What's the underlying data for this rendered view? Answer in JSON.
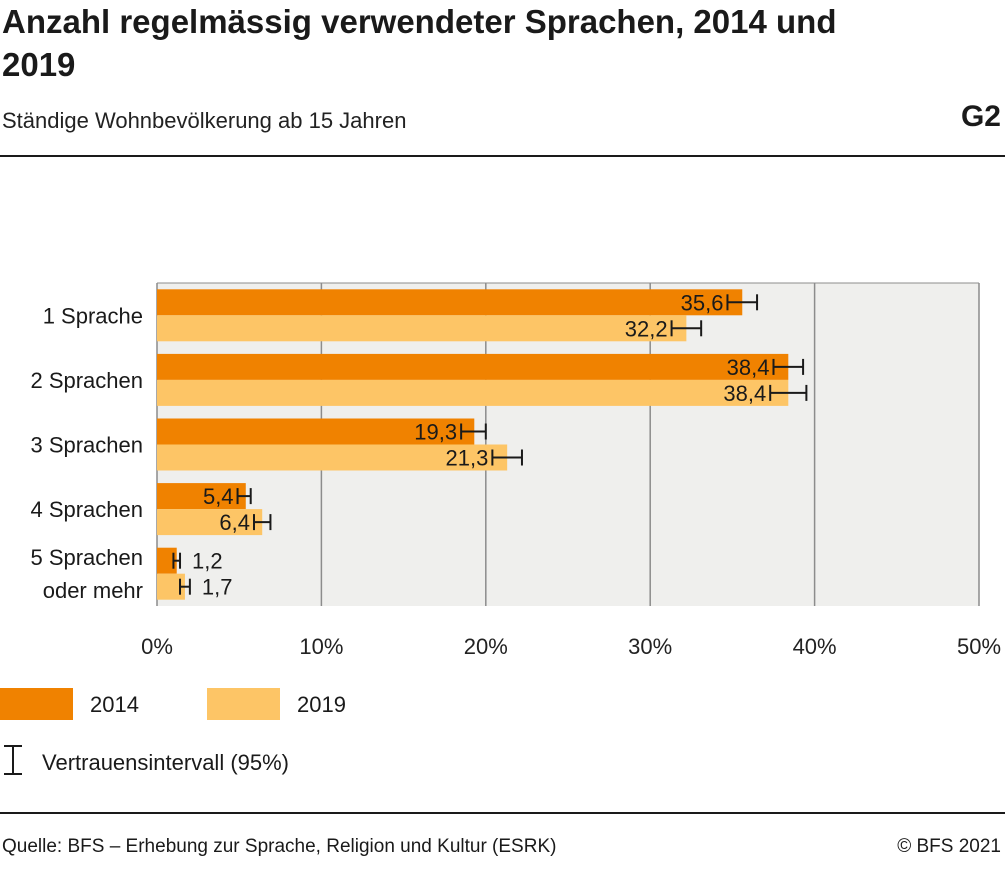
{
  "header": {
    "title": "Anzahl regelmässig verwendeter Sprachen, 2014 und 2019",
    "subtitle": "Ständige Wohnbevölkerung ab 15 Jahren",
    "code": "G2"
  },
  "chart_data": {
    "type": "bar",
    "orientation": "horizontal",
    "categories": [
      "1 Sprache",
      "2 Sprachen",
      "3 Sprachen",
      "4 Sprachen",
      "5 Sprachen oder mehr"
    ],
    "series": [
      {
        "name": "2014",
        "color": "#f08200",
        "values": [
          35.6,
          38.4,
          19.3,
          5.4,
          1.2
        ],
        "labels": [
          "35,6",
          "38,4",
          "19,3",
          "5,4",
          "1,2"
        ],
        "ci_low": [
          34.7,
          37.5,
          18.5,
          4.9,
          1.0
        ],
        "ci_high": [
          36.5,
          39.3,
          20.0,
          5.7,
          1.4
        ]
      },
      {
        "name": "2019",
        "color": "#fdc566",
        "values": [
          32.2,
          38.4,
          21.3,
          6.4,
          1.7
        ],
        "labels": [
          "32,2",
          "38,4",
          "21,3",
          "6,4",
          "1,7"
        ],
        "ci_low": [
          31.3,
          37.3,
          20.4,
          5.9,
          1.4
        ],
        "ci_high": [
          33.1,
          39.5,
          22.2,
          6.9,
          2.0
        ]
      }
    ],
    "xlim": [
      0,
      50
    ],
    "xticks": [
      "0%",
      "10%",
      "20%",
      "30%",
      "40%",
      "50%"
    ],
    "xlabel": "",
    "ylabel": "",
    "grid": true,
    "legend": "bottom-left"
  },
  "legend": {
    "ci_label": "Vertrauensintervall (95%)"
  },
  "footer": {
    "source": "Quelle: BFS – Erhebung zur Sprache, Religion und Kultur (ESRK)",
    "copyright": "© BFS 2021"
  }
}
